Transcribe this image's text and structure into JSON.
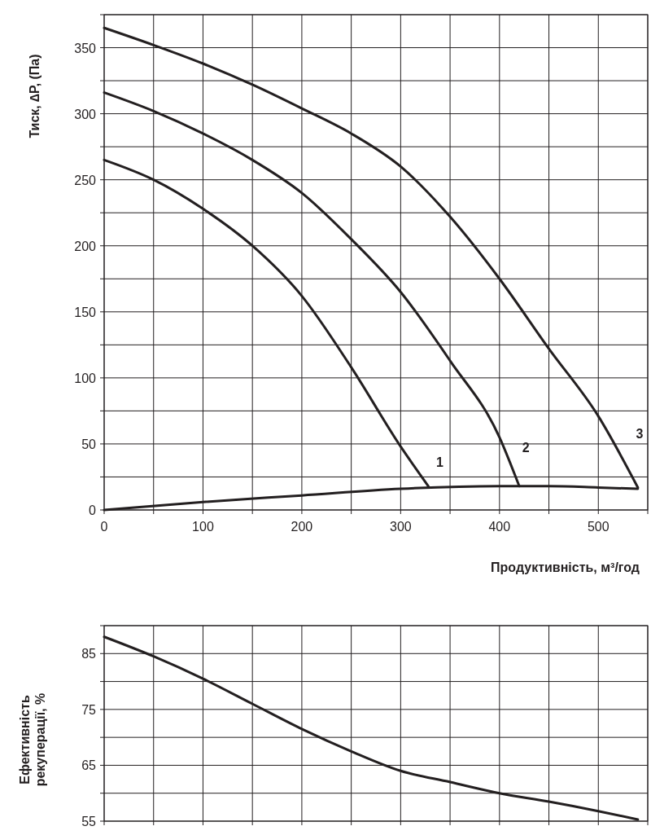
{
  "chart_data": [
    {
      "type": "line",
      "xlabel": "Продуктивність, м³/год",
      "ylabel": "Тиск, ∆P, (Па)",
      "xlim": [
        0,
        550
      ],
      "ylim": [
        0,
        375
      ],
      "xticks": [
        0,
        {
          "value": 50,
          "label": null
        },
        100,
        {
          "value": 150,
          "label": null
        },
        200,
        {
          "value": 250,
          "label": null
        },
        300,
        {
          "value": 350,
          "label": null
        },
        400,
        {
          "value": 450,
          "label": null
        },
        500,
        {
          "value": 550,
          "label": null
        }
      ],
      "yticks": [
        0,
        {
          "value": 25,
          "label": null
        },
        50,
        {
          "value": 75,
          "label": null
        },
        100,
        {
          "value": 125,
          "label": null
        },
        150,
        {
          "value": 175,
          "label": null
        },
        200,
        {
          "value": 225,
          "label": null
        },
        250,
        {
          "value": 275,
          "label": null
        },
        300,
        {
          "value": 325,
          "label": null
        },
        350,
        {
          "value": 375,
          "label": null
        }
      ],
      "grid": true,
      "marker": "none",
      "line_style": "solid",
      "series": [
        {
          "color": "#231f20",
          "x": [
            0,
            50,
            100,
            150,
            200,
            250,
            300,
            328
          ],
          "values": [
            265,
            250,
            228,
            200,
            162,
            108,
            48,
            18
          ]
        },
        {
          "color": "#231f20",
          "x": [
            0,
            50,
            100,
            150,
            200,
            250,
            300,
            350,
            400,
            420
          ],
          "values": [
            316,
            302,
            285,
            265,
            240,
            205,
            165,
            113,
            55,
            18
          ]
        },
        {
          "color": "#231f20",
          "x": [
            0,
            50,
            100,
            150,
            200,
            250,
            300,
            350,
            400,
            450,
            500,
            540
          ],
          "values": [
            365,
            352,
            338,
            322,
            304,
            285,
            260,
            222,
            175,
            122,
            71,
            17
          ]
        },
        {
          "color": "#231f20",
          "x": [
            0,
            100,
            200,
            300,
            400,
            450,
            500,
            540
          ],
          "values": [
            0,
            6,
            11,
            16,
            18,
            18,
            17,
            16
          ]
        }
      ],
      "annotations": [
        "1",
        "2",
        "3"
      ]
    },
    {
      "type": "line",
      "ylabel": "Ефективність рекуперації, %",
      "xlim": [
        0,
        550
      ],
      "ylim": [
        55,
        90
      ],
      "xticks": [
        {
          "value": 0,
          "label": null
        },
        {
          "value": 50,
          "label": null
        },
        {
          "value": 100,
          "label": null
        },
        {
          "value": 150,
          "label": null
        },
        {
          "value": 200,
          "label": null
        },
        {
          "value": 250,
          "label": null
        },
        {
          "value": 300,
          "label": null
        },
        {
          "value": 350,
          "label": null
        },
        {
          "value": 400,
          "label": null
        },
        {
          "value": 450,
          "label": null
        },
        {
          "value": 500,
          "label": null
        },
        {
          "value": 550,
          "label": null
        }
      ],
      "yticks": [
        55,
        {
          "value": 60,
          "label": null
        },
        65,
        {
          "value": 70,
          "label": null
        },
        75,
        {
          "value": 80,
          "label": null
        },
        85,
        {
          "value": 90,
          "label": null
        }
      ],
      "tick_labels": "y",
      "grid": true,
      "marker": "none",
      "line_style": "solid",
      "series": [
        {
          "color": "#231f20",
          "x": [
            0,
            50,
            100,
            150,
            200,
            250,
            300,
            350,
            400,
            450,
            500,
            540
          ],
          "values": [
            88,
            84.5,
            80.5,
            76,
            71.5,
            67.5,
            64,
            62,
            60,
            58.5,
            56.8,
            55.3
          ]
        }
      ]
    }
  ]
}
